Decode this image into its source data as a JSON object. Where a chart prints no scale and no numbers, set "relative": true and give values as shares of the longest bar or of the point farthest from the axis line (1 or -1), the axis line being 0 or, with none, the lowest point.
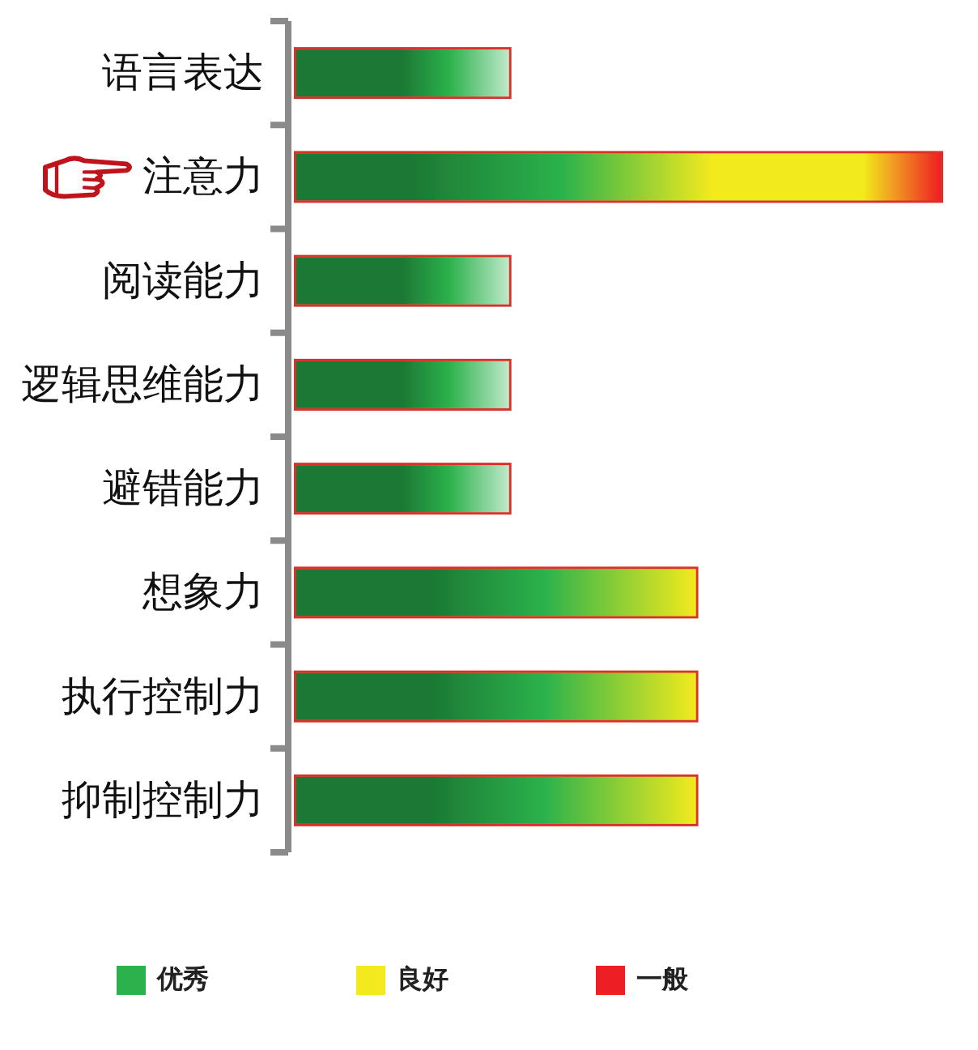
{
  "chart_data": {
    "type": "bar",
    "orientation": "horizontal",
    "relative": true,
    "stacked": true,
    "categories": [
      "语言表达",
      "注意力",
      "阅读能力",
      "逻辑思维能力",
      "避错能力",
      "想象力",
      "执行控制力",
      "抑制控制力"
    ],
    "series": [
      {
        "name": "优秀",
        "color": "#2bb24c",
        "values": [
          0.33,
          null,
          0.33,
          0.33,
          0.33,
          null,
          null,
          null
        ]
      },
      {
        "name": "良好",
        "color": "#f2ea1e",
        "values": [
          null,
          null,
          null,
          null,
          null,
          0.62,
          0.62,
          0.62
        ]
      },
      {
        "name": "一般",
        "color": "#ee1f24",
        "values": [
          null,
          1,
          null,
          null,
          null,
          null,
          null,
          null
        ]
      }
    ],
    "legend": "bottom"
  }
}
